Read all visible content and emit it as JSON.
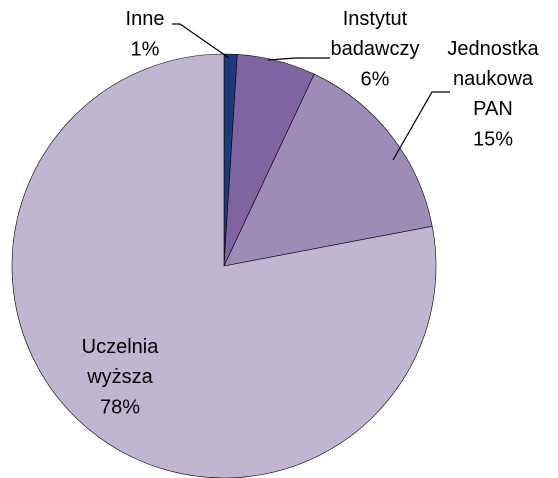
{
  "chart_data": {
    "type": "pie",
    "categories": [
      "Inne",
      "Instytut badawczy",
      "Jednostka naukowa PAN",
      "Uczelnia wyższa"
    ],
    "values": [
      1,
      6,
      15,
      78
    ],
    "value_labels": [
      "1%",
      "6%",
      "15%",
      "78%"
    ],
    "colors": [
      "#1f3a7a",
      "#8064a2",
      "#9e8cb8",
      "#c0b6d2"
    ]
  }
}
